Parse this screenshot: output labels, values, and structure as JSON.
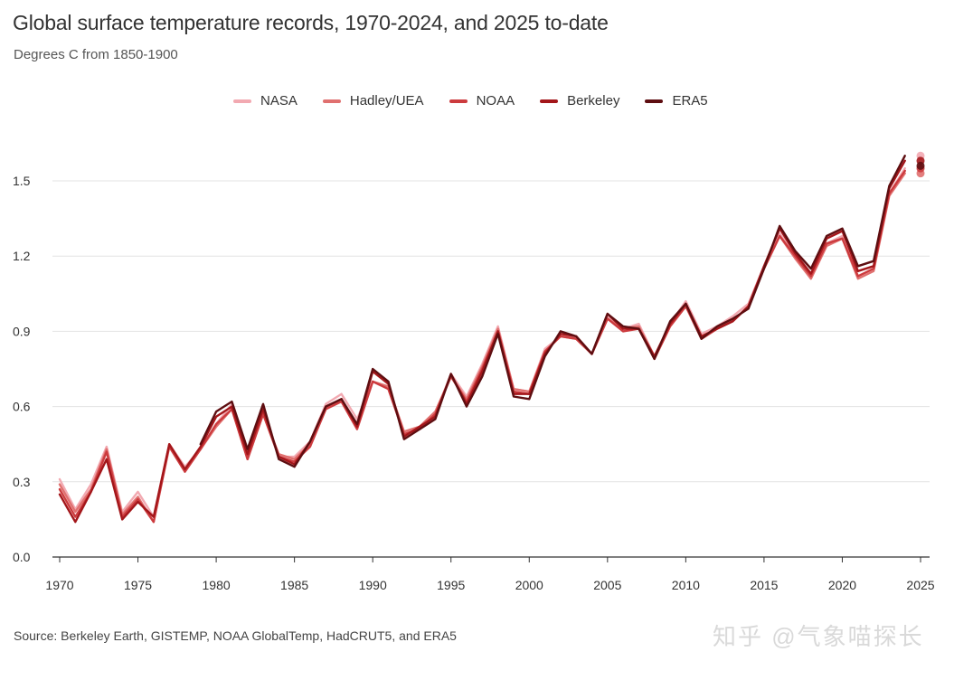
{
  "header": {
    "title": "Global surface temperature records, 1970-2024, and 2025 to-date",
    "subtitle": "Degrees C from 1850-1900"
  },
  "footer": {
    "source": "Source: Berkeley Earth, GISTEMP, NOAA GlobalTemp, HadCRUT5, and ERA5",
    "watermark": "知乎 @气象喵探长"
  },
  "chart_data": {
    "type": "line",
    "title": "Global surface temperature records, 1970-2024, and 2025 to-date",
    "subtitle": "Degrees C from 1850-1900",
    "xlabel": "",
    "ylabel": "",
    "xlim": [
      1970,
      2025
    ],
    "ylim": [
      0,
      1.5
    ],
    "x_ticks": [
      1970,
      1975,
      1980,
      1985,
      1990,
      1995,
      2000,
      2005,
      2010,
      2015,
      2020,
      2025
    ],
    "y_ticks": [
      0.0,
      0.3,
      0.6,
      0.9,
      1.2,
      1.5
    ],
    "y_tick_labels": [
      "0.0",
      "0.3",
      "0.6",
      "0.9",
      "1.2",
      "1.5"
    ],
    "grid": "horizontal",
    "legend_position": "top",
    "x": [
      1970,
      1971,
      1972,
      1973,
      1974,
      1975,
      1976,
      1977,
      1978,
      1979,
      1980,
      1981,
      1982,
      1983,
      1984,
      1985,
      1986,
      1987,
      1988,
      1989,
      1990,
      1991,
      1992,
      1993,
      1994,
      1995,
      1996,
      1997,
      1998,
      1999,
      2000,
      2001,
      2002,
      2003,
      2004,
      2005,
      2006,
      2007,
      2008,
      2009,
      2010,
      2011,
      2012,
      2013,
      2014,
      2015,
      2016,
      2017,
      2018,
      2019,
      2020,
      2021,
      2022,
      2023,
      2024
    ],
    "series": [
      {
        "name": "NASA",
        "color": "#f2a9b1",
        "values": [
          0.31,
          0.19,
          0.29,
          0.44,
          0.18,
          0.26,
          0.16,
          0.45,
          0.36,
          0.43,
          0.53,
          0.61,
          0.4,
          0.58,
          0.4,
          0.4,
          0.46,
          0.61,
          0.65,
          0.55,
          0.7,
          0.67,
          0.49,
          0.52,
          0.57,
          0.73,
          0.64,
          0.77,
          0.92,
          0.67,
          0.66,
          0.83,
          0.88,
          0.88,
          0.81,
          0.96,
          0.91,
          0.93,
          0.8,
          0.93,
          1.02,
          0.89,
          0.92,
          0.96,
          1.01,
          1.16,
          1.29,
          1.2,
          1.12,
          1.25,
          1.28,
          1.12,
          1.15,
          1.45,
          1.55
        ]
      },
      {
        "name": "Hadley/UEA",
        "color": "#e0706f",
        "values": [
          0.29,
          0.18,
          0.27,
          0.43,
          0.17,
          0.24,
          0.14,
          0.45,
          0.35,
          0.43,
          0.52,
          0.59,
          0.39,
          0.57,
          0.41,
          0.39,
          0.45,
          0.59,
          0.63,
          0.52,
          0.7,
          0.68,
          0.5,
          0.52,
          0.58,
          0.72,
          0.63,
          0.76,
          0.91,
          0.67,
          0.66,
          0.82,
          0.88,
          0.87,
          0.81,
          0.95,
          0.91,
          0.92,
          0.8,
          0.93,
          1.01,
          0.88,
          0.91,
          0.94,
          1.0,
          1.15,
          1.28,
          1.19,
          1.11,
          1.24,
          1.27,
          1.11,
          1.14,
          1.44,
          1.53
        ]
      },
      {
        "name": "NOAA",
        "color": "#cc3b3e",
        "values": [
          0.27,
          0.16,
          0.26,
          0.42,
          0.16,
          0.23,
          0.14,
          0.44,
          0.34,
          0.43,
          0.53,
          0.59,
          0.39,
          0.57,
          0.4,
          0.38,
          0.44,
          0.59,
          0.62,
          0.51,
          0.7,
          0.67,
          0.49,
          0.51,
          0.57,
          0.72,
          0.62,
          0.75,
          0.9,
          0.66,
          0.65,
          0.82,
          0.88,
          0.87,
          0.81,
          0.95,
          0.9,
          0.91,
          0.79,
          0.92,
          1.0,
          0.87,
          0.91,
          0.94,
          1.0,
          1.15,
          1.28,
          1.2,
          1.12,
          1.25,
          1.27,
          1.12,
          1.15,
          1.45,
          1.54
        ]
      },
      {
        "name": "Berkeley",
        "color": "#a3161a",
        "values": [
          0.25,
          0.14,
          0.26,
          0.39,
          0.15,
          0.22,
          0.16,
          0.45,
          0.35,
          0.44,
          0.56,
          0.6,
          0.41,
          0.59,
          0.4,
          0.37,
          0.46,
          0.6,
          0.63,
          0.52,
          0.74,
          0.69,
          0.48,
          0.52,
          0.56,
          0.73,
          0.61,
          0.74,
          0.9,
          0.65,
          0.65,
          0.81,
          0.89,
          0.88,
          0.81,
          0.97,
          0.91,
          0.91,
          0.8,
          0.93,
          1.01,
          0.88,
          0.91,
          0.94,
          1.0,
          1.16,
          1.31,
          1.21,
          1.13,
          1.27,
          1.3,
          1.14,
          1.16,
          1.47,
          1.58
        ]
      },
      {
        "name": "ERA5",
        "color": "#5e0e11",
        "start": 1979,
        "values": [
          null,
          null,
          null,
          null,
          null,
          null,
          null,
          null,
          null,
          0.45,
          0.58,
          0.62,
          0.43,
          0.61,
          0.39,
          0.36,
          0.46,
          0.6,
          0.63,
          0.53,
          0.75,
          0.7,
          0.47,
          0.51,
          0.55,
          0.73,
          0.6,
          0.72,
          0.89,
          0.64,
          0.63,
          0.8,
          0.9,
          0.88,
          0.81,
          0.97,
          0.92,
          0.91,
          0.79,
          0.94,
          1.01,
          0.87,
          0.92,
          0.95,
          0.99,
          1.15,
          1.32,
          1.22,
          1.15,
          1.28,
          1.31,
          1.16,
          1.18,
          1.48,
          1.6
        ]
      }
    ],
    "to_date_2025": {
      "x": 2025,
      "values": [
        {
          "name": "NASA",
          "value": 1.6
        },
        {
          "name": "Hadley/UEA",
          "value": 1.53
        },
        {
          "name": "NOAA",
          "value": 1.55
        },
        {
          "name": "Berkeley",
          "value": 1.58
        },
        {
          "name": "ERA5",
          "value": 1.56
        }
      ]
    }
  }
}
